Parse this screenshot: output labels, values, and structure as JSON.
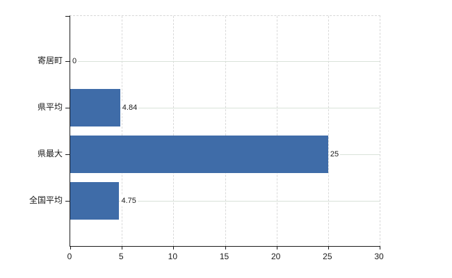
{
  "chart_data": {
    "type": "bar",
    "orientation": "horizontal",
    "title": "",
    "xlabel": "",
    "ylabel": "",
    "categories": [
      "寄居町",
      "県平均",
      "県最大",
      "全国平均"
    ],
    "values": [
      0,
      4.84,
      25,
      4.75
    ],
    "value_labels": [
      "0",
      "4.84",
      "25",
      "4.75"
    ],
    "xlim": [
      0,
      30
    ],
    "x_ticks": [
      0,
      5,
      10,
      15,
      20,
      25,
      30
    ],
    "x_tick_labels": [
      "0",
      "5",
      "10",
      "15",
      "20",
      "25",
      "30"
    ],
    "grid": "on",
    "legend": "none",
    "colors": {
      "bar": "#3f6ca8",
      "vertical_gridline": "#d9d9d9",
      "horizontal_gridline": "#d9e2d9",
      "axis": "#1a1a1a",
      "plot_border_dashed": "#d7d7d7",
      "background": "#ffffff",
      "text": "#1a1a1a"
    }
  }
}
